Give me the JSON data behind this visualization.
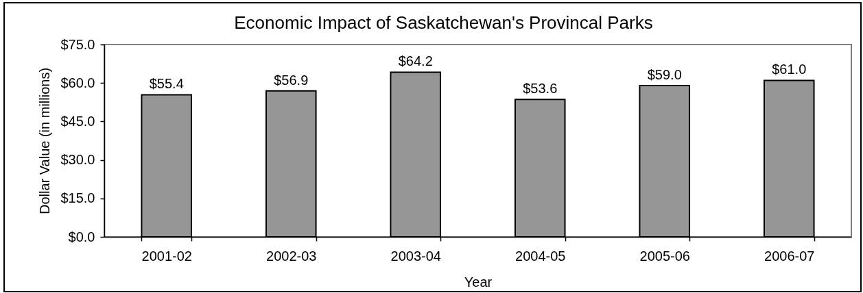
{
  "chart_data": {
    "type": "bar",
    "title": "Economic Impact of Saskatchewan's Provincal Parks",
    "xlabel": "Year",
    "ylabel": "Dollar Value (in millions)",
    "categories": [
      "2001-02",
      "2002-03",
      "2003-04",
      "2004-05",
      "2005-06",
      "2006-07"
    ],
    "values": [
      55.4,
      56.9,
      64.2,
      53.6,
      59.0,
      61.0
    ],
    "color": "#969696",
    "value_labels": [
      "$55.4",
      "$56.9",
      "$64.2",
      "$53.6",
      "$59.0",
      "$61.0"
    ],
    "ylim": [
      0,
      75
    ],
    "yticks": [
      {
        "value": 0,
        "label": "$0.0"
      },
      {
        "value": 15,
        "label": "$15.0"
      },
      {
        "value": 30,
        "label": "$30.0"
      },
      {
        "value": 45,
        "label": "$45.0"
      },
      {
        "value": 60,
        "label": "$60.0"
      },
      {
        "value": 75,
        "label": "$75.0"
      }
    ]
  }
}
